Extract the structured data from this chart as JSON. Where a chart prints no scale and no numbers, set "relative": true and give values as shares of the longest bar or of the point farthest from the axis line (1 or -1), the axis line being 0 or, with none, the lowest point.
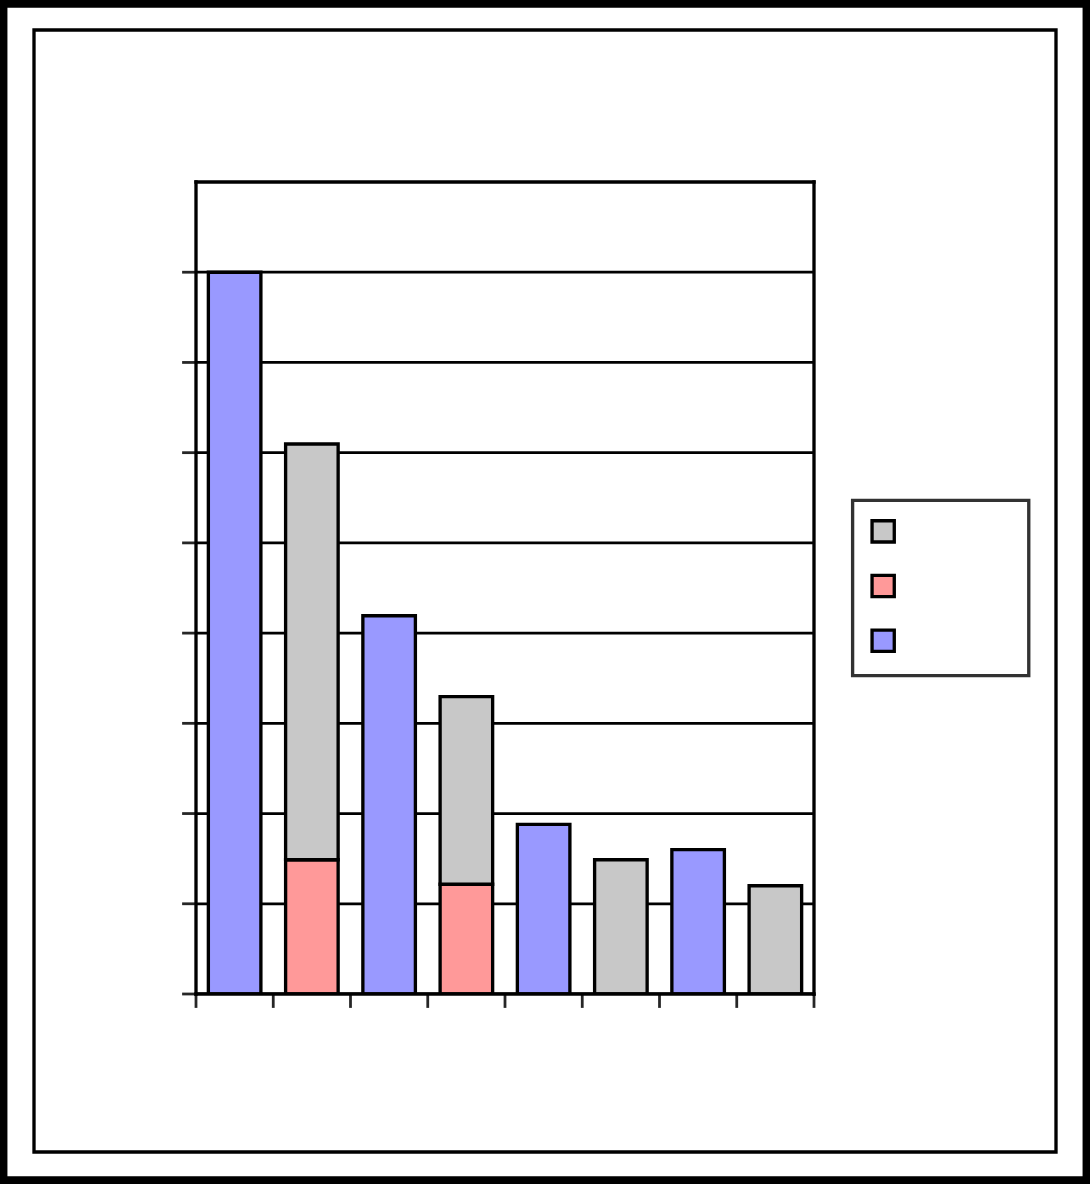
{
  "chart_data": {
    "type": "bar",
    "relative": true,
    "stacked": true,
    "categories": [
      null,
      null,
      null,
      null,
      null,
      null,
      null,
      null
    ],
    "series": [
      {
        "color": "#9999ff",
        "values": [
          1,
          null,
          0.524,
          null,
          0.235,
          null,
          0.2,
          null
        ]
      },
      {
        "color": "#ff9999",
        "values": [
          null,
          0.186,
          null,
          0.152,
          null,
          null,
          null,
          null
        ]
      },
      {
        "color": "#c8c8c8",
        "values": [
          null,
          0.576,
          null,
          0.26,
          null,
          0.186,
          null,
          0.15
        ]
      }
    ],
    "grid": "y",
    "tick_labels": false
  }
}
